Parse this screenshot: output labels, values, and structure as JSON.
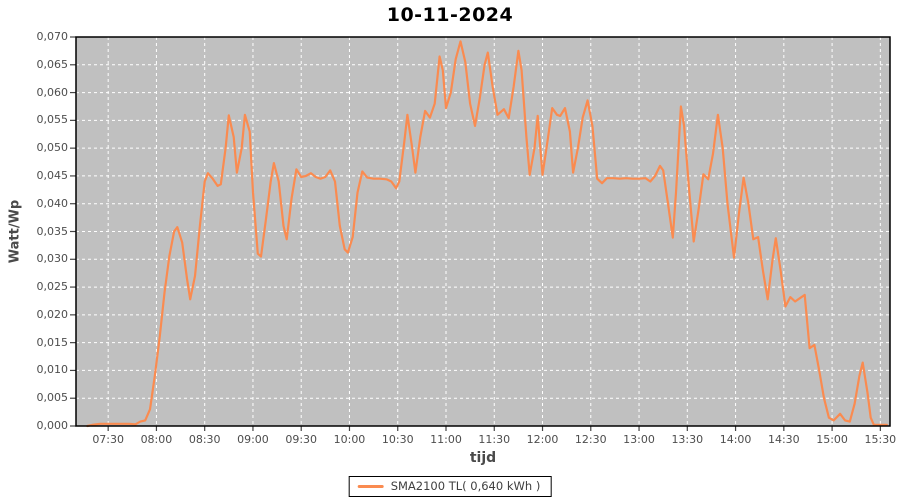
{
  "chart_data": {
    "type": "line",
    "title": "10-11-2024",
    "xlabel": "tijd",
    "ylabel": "Watt/Wp",
    "grid": true,
    "legend_position": "bottom-center",
    "background_color": "#ffffff",
    "plot_background_color": "#c0c0c0",
    "gridline_color": "#ffffff",
    "axis_border_color": "#000000",
    "tick_label_color": "#4d4d4d",
    "ylim": [
      0,
      0.07
    ],
    "y_tick_step": 0.005,
    "xlim": [
      "07:10",
      "15:36"
    ],
    "x_ticks": [
      "07:30",
      "08:00",
      "08:30",
      "09:00",
      "09:30",
      "10:00",
      "10:30",
      "11:00",
      "11:30",
      "12:00",
      "12:30",
      "13:00",
      "13:30",
      "14:00",
      "14:30",
      "15:00",
      "15:30"
    ],
    "y_tick_labels": [
      "0,000",
      "0,005",
      "0,010",
      "0,015",
      "0,020",
      "0,025",
      "0,030",
      "0,035",
      "0,040",
      "0,045",
      "0,050",
      "0,055",
      "0,060",
      "0,065",
      "0,070"
    ],
    "series": [
      {
        "name": "SMA2100 TL( 0,640 kWh )",
        "color": "#fa8b50",
        "x": [
          "07:17",
          "07:20",
          "07:25",
          "07:31",
          "07:37",
          "07:43",
          "07:47",
          "07:50",
          "07:53",
          "07:56",
          "07:59",
          "08:02",
          "08:05",
          "08:08",
          "08:11",
          "08:13",
          "08:16",
          "08:19",
          "08:21",
          "08:24",
          "08:27",
          "08:30",
          "08:32",
          "08:35",
          "08:38",
          "08:40",
          "08:43",
          "08:45",
          "08:48",
          "08:50",
          "08:53",
          "08:55",
          "08:58",
          "09:00",
          "09:03",
          "09:05",
          "09:08",
          "09:11",
          "09:13",
          "09:16",
          "09:19",
          "09:21",
          "09:24",
          "09:27",
          "09:30",
          "09:33",
          "09:36",
          "09:39",
          "09:42",
          "09:45",
          "09:48",
          "09:51",
          "09:54",
          "09:57",
          "09:59",
          "10:02",
          "10:05",
          "10:08",
          "10:11",
          "10:15",
          "10:19",
          "10:23",
          "10:26",
          "10:29",
          "10:31",
          "10:34",
          "10:36",
          "10:39",
          "10:41",
          "10:44",
          "10:47",
          "10:50",
          "10:53",
          "10:56",
          "10:58",
          "11:00",
          "11:03",
          "11:06",
          "11:09",
          "11:12",
          "11:15",
          "11:18",
          "11:21",
          "11:24",
          "11:26",
          "11:29",
          "11:32",
          "11:36",
          "11:39",
          "11:42",
          "11:45",
          "11:47",
          "11:50",
          "11:52",
          "11:55",
          "11:57",
          "12:00",
          "12:03",
          "12:06",
          "12:09",
          "12:11",
          "12:14",
          "12:17",
          "12:19",
          "12:22",
          "12:25",
          "12:28",
          "12:31",
          "12:34",
          "12:37",
          "12:40",
          "12:44",
          "12:48",
          "12:52",
          "12:56",
          "13:00",
          "13:04",
          "13:07",
          "13:10",
          "13:13",
          "13:15",
          "13:18",
          "13:21",
          "13:23",
          "13:26",
          "13:28",
          "13:31",
          "13:34",
          "13:37",
          "13:40",
          "13:43",
          "13:46",
          "13:49",
          "13:52",
          "13:55",
          "13:59",
          "14:02",
          "14:05",
          "14:08",
          "14:11",
          "14:14",
          "14:17",
          "14:20",
          "14:23",
          "14:25",
          "14:28",
          "14:31",
          "14:34",
          "14:37",
          "14:40",
          "14:43",
          "14:46",
          "14:49",
          "14:52",
          "14:55",
          "14:58",
          "15:01",
          "15:05",
          "15:08",
          "15:11",
          "15:14",
          "15:17",
          "15:19",
          "15:22",
          "15:24",
          "15:26",
          "15:30",
          "15:34"
        ],
        "y": [
          0.0,
          0.0002,
          0.0004,
          0.0004,
          0.0004,
          0.0004,
          0.0003,
          0.0008,
          0.001,
          0.003,
          0.009,
          0.016,
          0.024,
          0.0305,
          0.035,
          0.0358,
          0.033,
          0.0265,
          0.0228,
          0.027,
          0.036,
          0.044,
          0.0455,
          0.0445,
          0.0432,
          0.0435,
          0.05,
          0.0559,
          0.052,
          0.0456,
          0.05,
          0.056,
          0.053,
          0.042,
          0.031,
          0.0305,
          0.037,
          0.044,
          0.0473,
          0.044,
          0.036,
          0.0336,
          0.041,
          0.0462,
          0.0448,
          0.045,
          0.0455,
          0.0448,
          0.0445,
          0.0448,
          0.046,
          0.044,
          0.036,
          0.0318,
          0.0312,
          0.034,
          0.042,
          0.0458,
          0.0447,
          0.0445,
          0.0445,
          0.0444,
          0.044,
          0.0428,
          0.044,
          0.051,
          0.056,
          0.05,
          0.0456,
          0.052,
          0.0567,
          0.0555,
          0.058,
          0.0665,
          0.064,
          0.0572,
          0.06,
          0.066,
          0.0692,
          0.0655,
          0.058,
          0.054,
          0.059,
          0.065,
          0.0672,
          0.061,
          0.056,
          0.057,
          0.0554,
          0.061,
          0.0675,
          0.064,
          0.052,
          0.0452,
          0.05,
          0.0558,
          0.0452,
          0.051,
          0.0572,
          0.056,
          0.0558,
          0.0572,
          0.053,
          0.0456,
          0.05,
          0.0555,
          0.0586,
          0.054,
          0.0445,
          0.0437,
          0.0446,
          0.0446,
          0.0445,
          0.0446,
          0.0445,
          0.0445,
          0.0446,
          0.044,
          0.045,
          0.0468,
          0.046,
          0.04,
          0.0339,
          0.042,
          0.0575,
          0.054,
          0.043,
          0.0332,
          0.039,
          0.0453,
          0.0444,
          0.049,
          0.056,
          0.05,
          0.04,
          0.0303,
          0.038,
          0.0447,
          0.04,
          0.0336,
          0.034,
          0.028,
          0.0228,
          0.03,
          0.0338,
          0.028,
          0.0215,
          0.0232,
          0.0224,
          0.023,
          0.0236,
          0.014,
          0.0146,
          0.01,
          0.005,
          0.0015,
          0.001,
          0.0022,
          0.001,
          0.0008,
          0.004,
          0.009,
          0.0114,
          0.006,
          0.0015,
          0.0002,
          0.0002,
          0.0002
        ]
      }
    ]
  }
}
